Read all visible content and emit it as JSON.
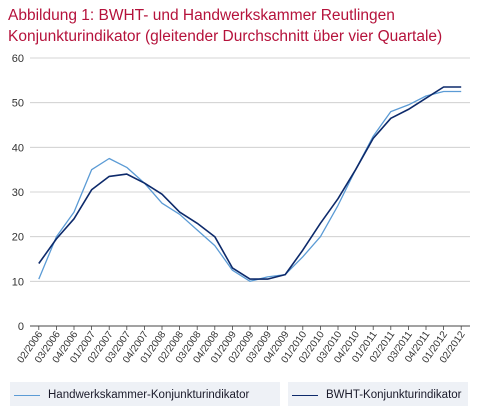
{
  "title_line1": "Abbildung 1: BWHT- und Handwerkskammer  Reutlingen",
  "title_line2": "Konjunkturindikator (gleitender Durchschnitt über vier Quartale)",
  "colors": {
    "series1": "#5b9bd5",
    "series2": "#0d2a6b",
    "title": "#b5123b",
    "grid": "#c8c8c8",
    "axis": "#444444"
  },
  "chart_data": {
    "type": "line",
    "title": "Abbildung 1: BWHT- und Handwerkskammer  Reutlingen Konjunkturindikator (gleitender Durchschnitt über vier Quartale)",
    "xlabel": "",
    "ylabel": "",
    "ylim": [
      0,
      60
    ],
    "yticks": [
      0,
      10,
      20,
      30,
      40,
      50,
      60
    ],
    "grid": true,
    "legend_position": "bottom",
    "categories": [
      "02/2006",
      "03/2006",
      "04/2006",
      "01/2007",
      "02/2007",
      "03/2007",
      "04/2007",
      "01/2008",
      "02/2008",
      "03/2008",
      "04/2008",
      "01/2009",
      "02/2009",
      "03/2009",
      "04/2009",
      "01/2010",
      "02/2010",
      "03/2010",
      "04/2010",
      "01/2011",
      "02/2011",
      "03/2011",
      "04/2011",
      "01/2012",
      "02/2012"
    ],
    "series": [
      {
        "name": "Handwerkskammer-Konjunkturindikator",
        "values": [
          10.5,
          20,
          25.5,
          35,
          37.5,
          35.5,
          32,
          27.5,
          25,
          21.5,
          18,
          12.5,
          10,
          11,
          11.5,
          15.5,
          20,
          27,
          35,
          42.5,
          48,
          49.5,
          51.5,
          52.5,
          52.5
        ]
      },
      {
        "name": "BWHT-Konjunkturindikator",
        "values": [
          14,
          19.5,
          24,
          30.5,
          33.5,
          34,
          32,
          29.5,
          25.5,
          23,
          20,
          13,
          10.5,
          10.5,
          11.5,
          17,
          23,
          28.5,
          35,
          42,
          46.5,
          48.5,
          51,
          53.5,
          53.5
        ]
      }
    ]
  }
}
